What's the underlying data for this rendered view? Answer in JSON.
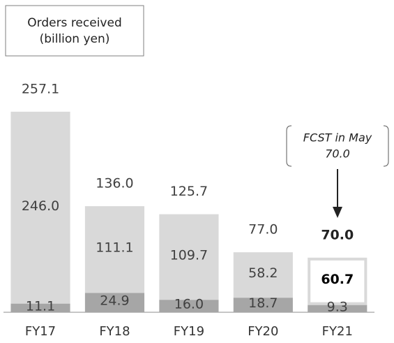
{
  "chart_data": {
    "type": "stacked_bar",
    "title": [
      "Orders received",
      "(billion yen)"
    ],
    "categories": [
      "FY17",
      "FY18",
      "FY19",
      "FY20",
      "FY21"
    ],
    "series": [
      {
        "color": "#a6a6a6",
        "values": [
          11.1,
          24.9,
          16.0,
          18.7,
          9.3
        ],
        "value_labels": [
          "11.1",
          "24.9",
          "16.0",
          "18.7",
          "9.3"
        ]
      },
      {
        "color": "#d9d9d9",
        "colors": [
          "#d9d9d9",
          "#d9d9d9",
          "#d9d9d9",
          "#d9d9d9",
          "#ffffff"
        ],
        "edgecolors": [
          null,
          null,
          null,
          null,
          "#d9d9d9"
        ],
        "values": [
          246.0,
          111.1,
          109.7,
          58.2,
          60.7
        ],
        "value_labels": [
          "246.0",
          "111.1",
          "109.7",
          "58.2",
          "60.7"
        ]
      }
    ],
    "totals": [
      257.1,
      136.0,
      125.7,
      77.0,
      70.0
    ],
    "total_labels": [
      "257.1",
      "136.0",
      "125.7",
      "77.0",
      "70.0"
    ],
    "annotation": [
      "FCST in May",
      "70.0"
    ],
    "ylim": [
      0,
      300
    ]
  }
}
